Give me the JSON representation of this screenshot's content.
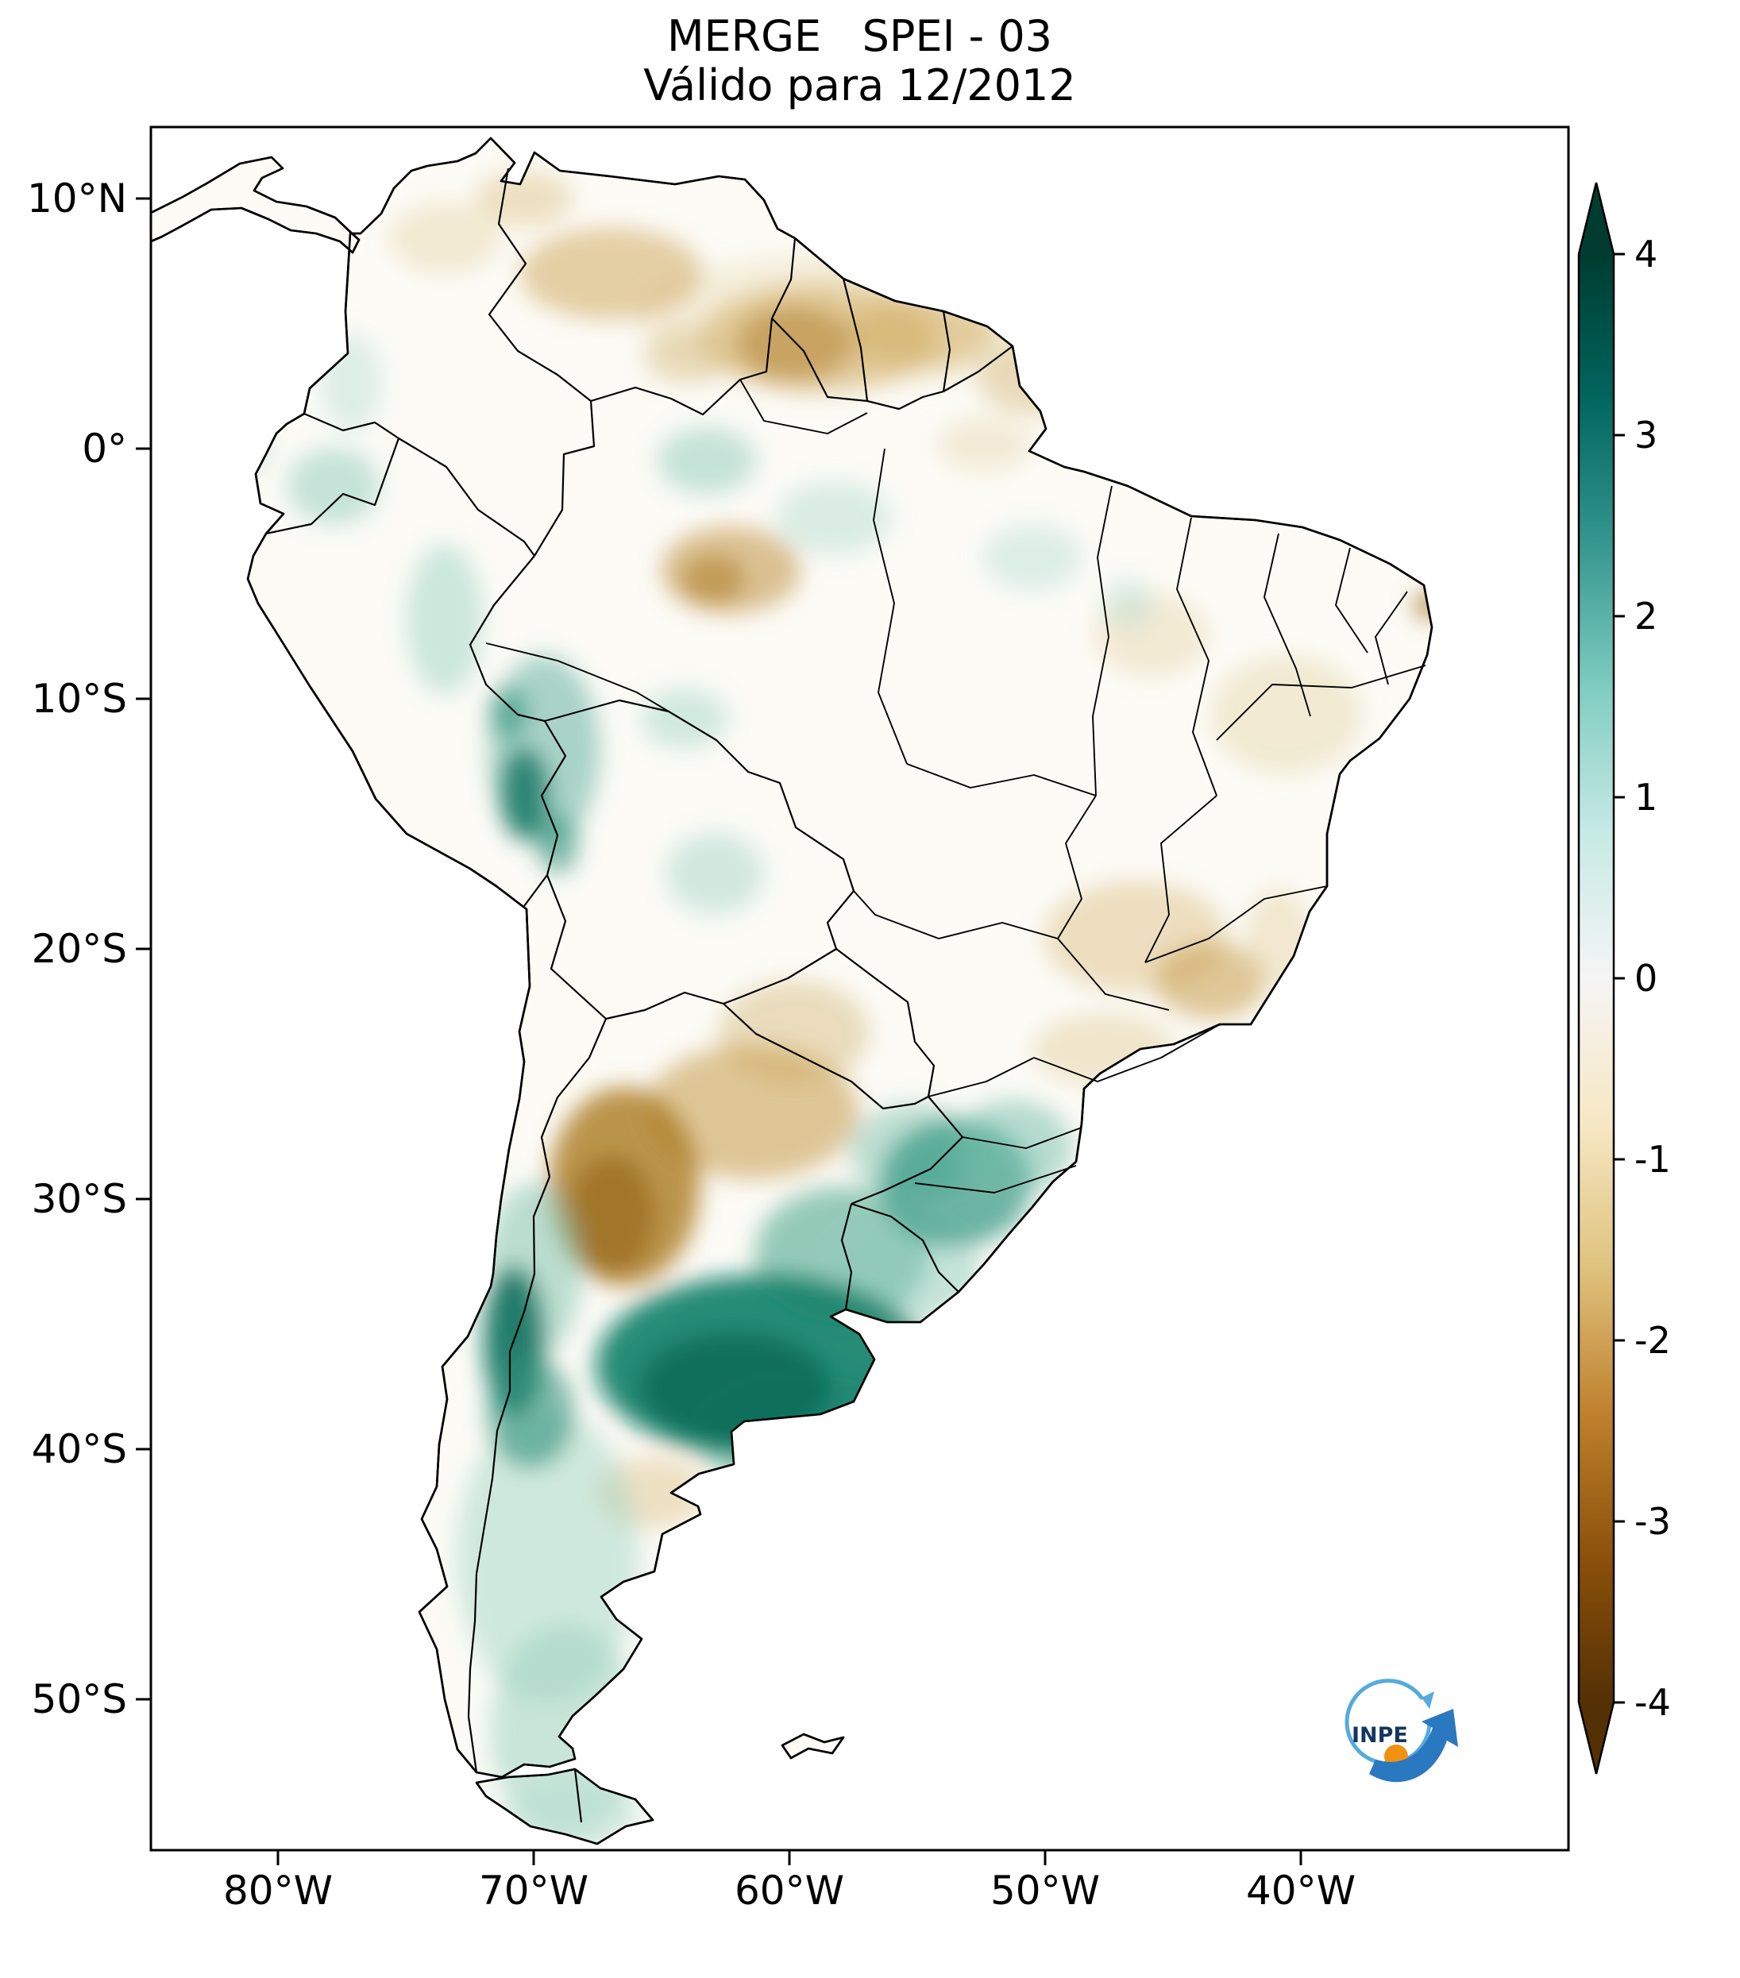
{
  "title": {
    "line1": "MERGE   SPEI - 03",
    "line2": "Válido para 12/2012"
  },
  "axes": {
    "y_ticks": [
      "10°N",
      "0°",
      "10°S",
      "20°S",
      "30°S",
      "40°S",
      "50°S"
    ],
    "x_ticks": [
      "80°W",
      "70°W",
      "60°W",
      "50°W",
      "40°W"
    ]
  },
  "colorbar": {
    "tick_labels": [
      "4",
      "3",
      "2",
      "1",
      "0",
      "-1",
      "-2",
      "-3",
      "-4"
    ],
    "colors_top_to_bottom": [
      "#003c30",
      "#01665e",
      "#35978f",
      "#80cdc1",
      "#c7eae5",
      "#f5f5f5",
      "#f6e8c3",
      "#dfc27d",
      "#bf812d",
      "#8c510a",
      "#543005"
    ],
    "top_color": "#003c30",
    "bottom_color": "#543005"
  },
  "logo": {
    "text": "INPE",
    "swirl_color": "#56aadc",
    "arrow_color": "#2a78c0",
    "dot_color": "#f0920f",
    "text_color": "#16365f"
  },
  "map_colors": {
    "land": "#fcfbf6",
    "wet_dark_teal": "#0e7261",
    "wet_teal": "#57ac97",
    "wet_light_teal": "#b7ded2",
    "dry_dark_brown": "#96691a",
    "dry_tan": "#c9a255",
    "dry_light_tan": "#e6d5a8",
    "boundary": "#000000"
  },
  "chart_data": {
    "type": "heatmap",
    "map_region": "South America",
    "variable": "SPEI-03 (3-month Standardized Precipitation-Evapotranspiration Index, MERGE)",
    "title": "MERGE   SPEI - 03",
    "subtitle": "Válido para 12/2012",
    "colormap": "BrBG (brown = dry anomaly, teal = wet anomaly)",
    "value_range": [
      -4,
      4
    ],
    "colorbar_ticks": [
      4,
      3,
      2,
      1,
      0,
      -1,
      -2,
      -3,
      -4
    ],
    "x_axis": {
      "label": "longitude",
      "ticks": [
        "80°W",
        "70°W",
        "60°W",
        "50°W",
        "40°W"
      ]
    },
    "y_axis": {
      "label": "latitude",
      "ticks": [
        "10°N",
        "0°",
        "10°S",
        "20°S",
        "30°S",
        "40°S",
        "50°S"
      ]
    },
    "notable_anomalies": [
      {
        "region": "Central-eastern Argentina (Pampas, ~36S 61W)",
        "spei": 2.5
      },
      {
        "region": "Central Chile Andes (~35S)",
        "spei": 2.5
      },
      {
        "region": "Rio Grande do Sul, southern Brazil (~29S 53W)",
        "spei": 1.5
      },
      {
        "region": "Uruguay",
        "spei": 1
      },
      {
        "region": "Peru-Bolivia Andes (~13S 70W)",
        "spei": 2
      },
      {
        "region": "Patagonia (light wet)",
        "spei": 1
      },
      {
        "region": "Ecuador / SW Colombia",
        "spei": 1
      },
      {
        "region": "Western-central Argentina (~29S 66W)",
        "spei": -2.5
      },
      {
        "region": "Gran Chaco / Paraguay (~26S 61W)",
        "spei": -1.5
      },
      {
        "region": "Venezuela-Guyana-Roraima belt (~4N)",
        "spei": -1.5
      },
      {
        "region": "Central Amazon (~5S 63W)",
        "spei": -1.5
      },
      {
        "region": "East-central Brazil, Minas Gerais (~19S)",
        "spei": -1
      },
      {
        "region": "Amapá / lower Amazon (~1N 51W)",
        "spei": -1
      },
      {
        "region": "Most of the remaining continent",
        "spei": 0
      }
    ]
  }
}
